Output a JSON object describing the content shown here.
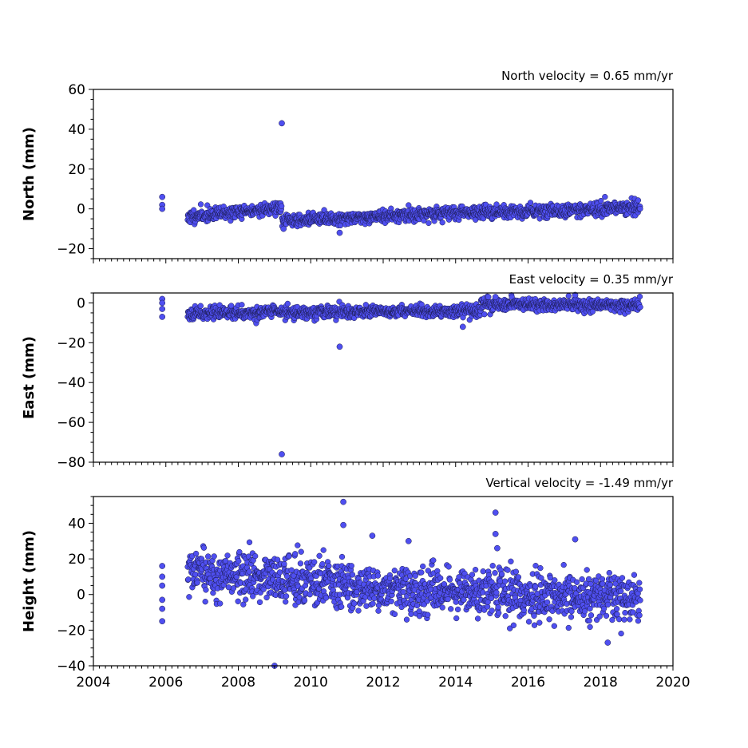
{
  "colors": {
    "marker_fill": "#4f4ff0",
    "marker_edge": "#1a1a4d",
    "axes": "#000000"
  },
  "chart_data": [
    {
      "type": "scatter",
      "title": "North velocity = 0.65 mm/yr",
      "xlabel": "",
      "ylabel": "North (mm)",
      "xlim": [
        2004,
        2020
      ],
      "ylim": [
        -25,
        60
      ],
      "yticks": [
        -20,
        0,
        20,
        40,
        60
      ],
      "ytick_labels": [
        "−20",
        "0",
        "20",
        "40",
        "60"
      ],
      "xticks": [
        2004,
        2006,
        2008,
        2010,
        2012,
        2014,
        2016,
        2018,
        2020
      ],
      "show_xtick_labels": false,
      "grid": false,
      "gen": {
        "seed": 11,
        "noise": 1.6,
        "segments": [
          [
            2006.6,
            -4,
            2009.2,
            0.5
          ],
          [
            2009.2,
            -6,
            2014.0,
            -2
          ],
          [
            2014.0,
            -2,
            2019.1,
            0.5
          ]
        ]
      },
      "x": [
        2005.9,
        2005.9,
        2005.9,
        2009.2,
        2009.25,
        2010.8
      ],
      "y": [
        6,
        2,
        0,
        43,
        -10,
        -12
      ]
    },
    {
      "type": "scatter",
      "title": "East velocity = 0.35 mm/yr",
      "xlabel": "",
      "ylabel": "East (mm)",
      "xlim": [
        2004,
        2020
      ],
      "ylim": [
        -80,
        5
      ],
      "yticks": [
        -80,
        -60,
        -40,
        -20,
        0
      ],
      "ytick_labels": [
        "−80",
        "−60",
        "−40",
        "−20",
        "0"
      ],
      "xticks": [
        2004,
        2006,
        2008,
        2010,
        2012,
        2014,
        2016,
        2018,
        2020
      ],
      "show_xtick_labels": false,
      "grid": false,
      "gen": {
        "seed": 23,
        "noise": 1.5,
        "segments": [
          [
            2006.6,
            -5,
            2014.7,
            -4
          ],
          [
            2014.7,
            -1,
            2019.1,
            -1
          ]
        ]
      },
      "x": [
        2005.9,
        2005.9,
        2005.9,
        2005.9,
        2009.2,
        2010.8,
        2014.2,
        2014.9,
        2015.1,
        2017.3
      ],
      "y": [
        2,
        0,
        -3,
        -7,
        -76,
        -22,
        -12,
        3,
        3,
        4
      ]
    },
    {
      "type": "scatter",
      "title": "Vertical velocity = -1.49 mm/yr",
      "xlabel": "",
      "ylabel": "Height (mm)",
      "xlim": [
        2004,
        2020
      ],
      "ylim": [
        -40,
        55
      ],
      "yticks": [
        -40,
        -20,
        0,
        20,
        40
      ],
      "ytick_labels": [
        "−40",
        "−20",
        "0",
        "20",
        "40"
      ],
      "xticks": [
        2004,
        2006,
        2008,
        2010,
        2012,
        2014,
        2016,
        2018,
        2020
      ],
      "xtick_labels": [
        "2004",
        "2006",
        "2008",
        "2010",
        "2012",
        "2014",
        "2016",
        "2018",
        "2020"
      ],
      "show_xtick_labels": true,
      "grid": false,
      "gen": {
        "seed": 37,
        "noise": 6.5,
        "segments": [
          [
            2006.6,
            12,
            2011.0,
            6
          ],
          [
            2011.0,
            4,
            2019.1,
            -3
          ]
        ]
      },
      "x": [
        2005.9,
        2005.9,
        2005.9,
        2005.9,
        2005.9,
        2005.9,
        2009.0,
        2010.9,
        2010.9,
        2011.7,
        2012.7,
        2015.1,
        2015.1,
        2015.15,
        2017.3,
        2018.2
      ],
      "y": [
        16,
        10,
        5,
        -3,
        -8,
        -15,
        -40,
        52,
        39,
        33,
        30,
        46,
        34,
        26,
        31,
        -27
      ]
    }
  ]
}
